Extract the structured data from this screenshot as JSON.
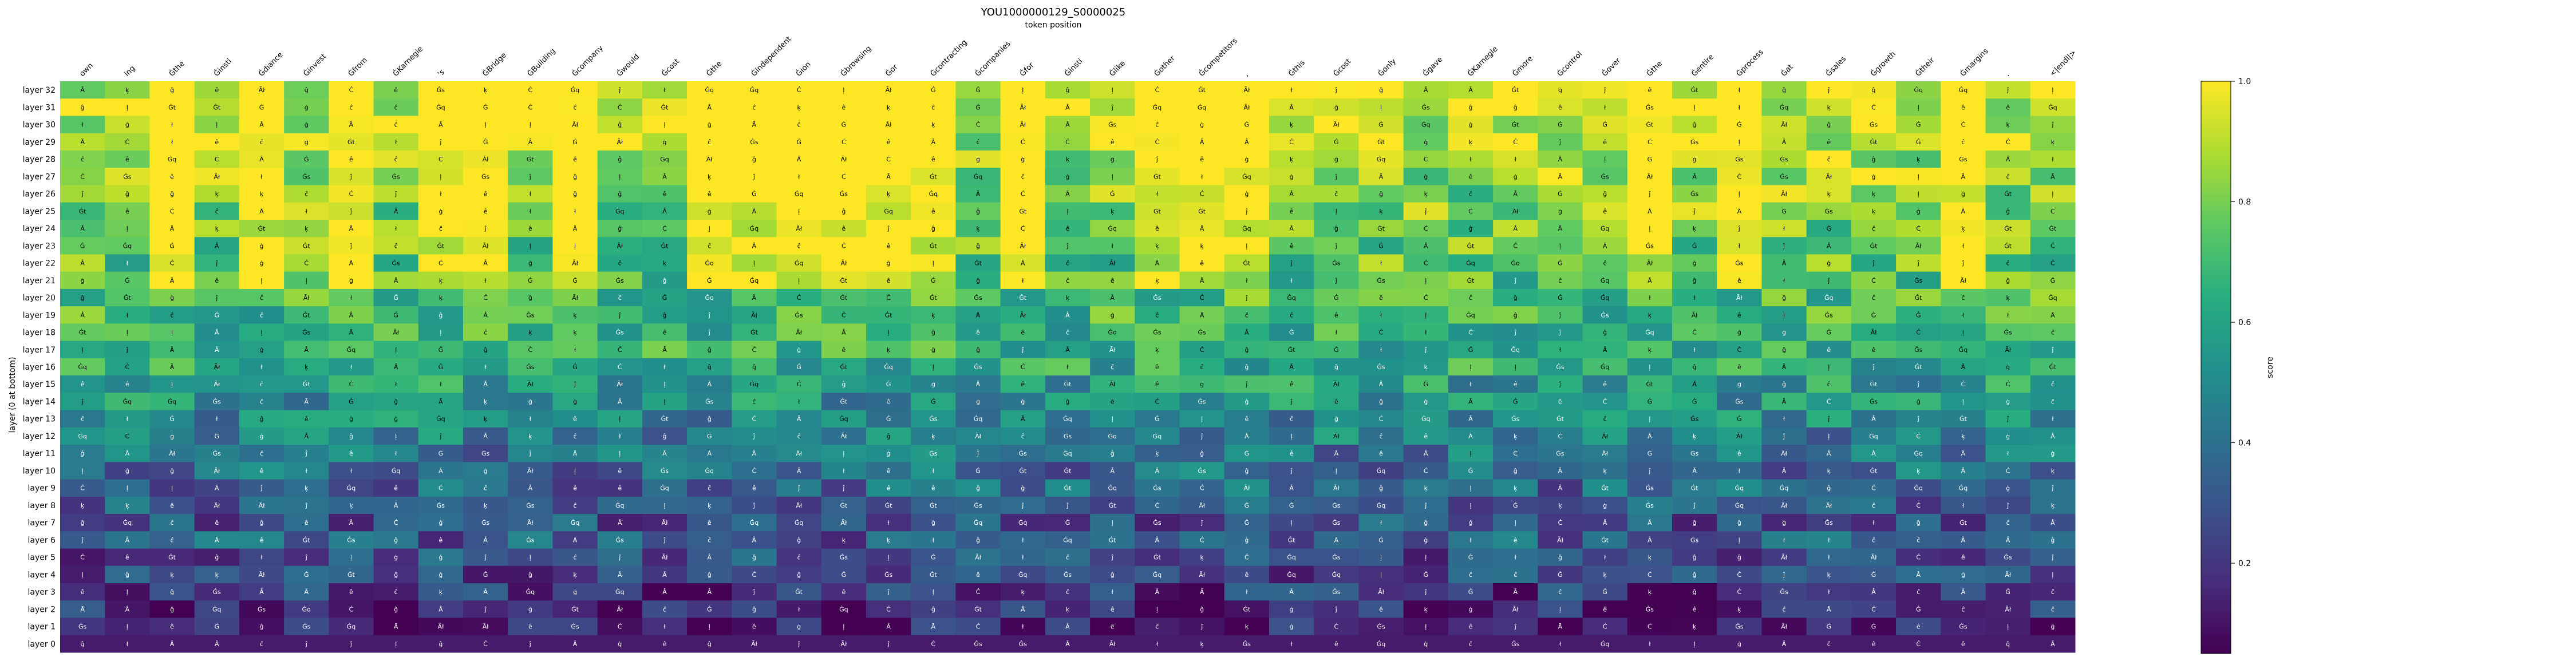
{
  "chart_data": {
    "type": "heatmap",
    "title": "YOU1000000129_S0000025",
    "subtitle": "token position",
    "ylabel": "layer (0 at bottom)",
    "colorbar": {
      "label": "score",
      "ticks": [
        "0.2",
        "0.4",
        "0.6",
        "0.8",
        "1.0"
      ],
      "tick_values": [
        0.2,
        0.4,
        0.6,
        0.8,
        1.0
      ],
      "range": [
        0.05,
        1.0
      ],
      "colormap": "viridis"
    },
    "x_tokens": [
      "own",
      "ing",
      "Ġthe",
      "Ġinsti",
      "Ġdiance",
      "Ġinvest",
      "Ġfrom",
      "ĠKarnegie",
      "'s",
      "ĠBridge",
      "ĠBuilding",
      "Ġcompany",
      "Ġwould",
      "Ġcost",
      "Ġthe",
      "Ġindependent",
      "Ġion",
      "Ġbrowsing",
      "Ġor",
      "Ġcontracting",
      "Ġcompanies",
      "Ġfor",
      "Ġinsti",
      "Ġlike",
      "Ġother",
      "Ġcompetitors",
      ",",
      "Ġthis",
      "Ġcost",
      "Ġonly",
      "Ġgave",
      "ĠKarnegie",
      "Ġmore",
      "Ġcontrol",
      "Ġover",
      "Ġthe",
      "Ġentire",
      "Ġprocess",
      "Ġat",
      "Ġsales",
      "Ġgrowth",
      "Ġtheir",
      "Ġmargins",
      ".",
      "<|endl|>"
    ],
    "y_layers": [
      "layer 32",
      "layer 31",
      "layer 30",
      "layer 29",
      "layer 28",
      "layer 27",
      "layer 26",
      "layer 25",
      "layer 24",
      "layer 23",
      "layer 22",
      "layer 21",
      "layer 20",
      "layer 19",
      "layer 18",
      "layer 17",
      "layer 16",
      "layer 15",
      "layer 14",
      "layer 13",
      "layer 12",
      "layer 11",
      "layer 10",
      "layer 9",
      "layer 8",
      "layer 7",
      "layer 6",
      "layer 5",
      "layer 4",
      "layer 3",
      "layer 2",
      "layer 1",
      "layer 0"
    ],
    "cell_tokens": [
      "Ġ",
      "Â",
      "ĉ",
      "ļ",
      "Ġt",
      "Ġs",
      "ġ",
      "ł",
      "ê",
      "Ċ",
      "Ãł",
      "Ā",
      "Ġq",
      "ķ",
      "ĵ",
      "ĝ"
    ],
    "value_model": "score per cell; top layers high, bottom layers low"
  }
}
